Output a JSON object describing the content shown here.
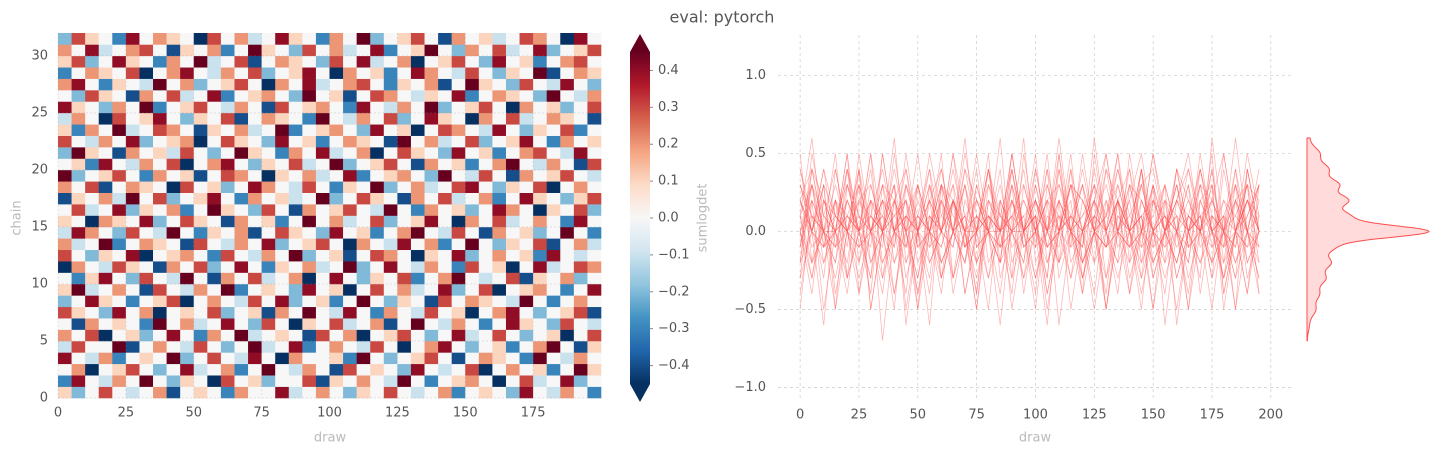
{
  "chart_data": {
    "type": "trace",
    "title": "eval: pytorch",
    "x": [
      0,
      5,
      10,
      15,
      20,
      25,
      30,
      35,
      40,
      45,
      50,
      55,
      60,
      65,
      70,
      75,
      80,
      85,
      90,
      95,
      100,
      105,
      110,
      115,
      120,
      125,
      130,
      135,
      140,
      145,
      150,
      155,
      160,
      165,
      170,
      175,
      180,
      185,
      190,
      195
    ],
    "chains": [
      0,
      1,
      2,
      3,
      4,
      5,
      6,
      7,
      8,
      9,
      10,
      11,
      12,
      13,
      14,
      15,
      16,
      17,
      18,
      19,
      20,
      21,
      22,
      23,
      24,
      25,
      26,
      27,
      28,
      29,
      30,
      31
    ],
    "values": [
      [
        0.1,
        -0.2,
        0,
        0.3,
        0,
        -0.1,
        0,
        0.2,
        -0.4,
        0,
        0.1,
        0,
        -0.3,
        0.2,
        0,
        0,
        0.4,
        -0.1,
        0,
        0.2,
        0,
        -0.2,
        0.1,
        0,
        0.3,
        0,
        -0.1,
        0,
        0.2,
        -0.3,
        0,
        0.1,
        0,
        -0.2,
        0.4,
        0,
        -0.1,
        0.2,
        0,
        -0.3
      ],
      [
        -0.3,
        0.4,
        0,
        -0.1,
        0.2,
        0,
        0.5,
        0,
        -0.2,
        0.1,
        0,
        -0.6,
        0.3,
        0,
        0.1,
        -0.2,
        0,
        0,
        0.3,
        -0.4,
        0.1,
        0,
        0.2,
        0,
        -0.1,
        0.6,
        0,
        -0.3,
        0,
        0.1,
        0.2,
        0,
        -0.5,
        0,
        0.3,
        -0.1,
        0,
        0.4,
        -0.2,
        0
      ],
      [
        0,
        0.2,
        -0.5,
        0,
        0.1,
        0.3,
        0,
        -0.2,
        0,
        0.4,
        -0.1,
        0,
        0.2,
        -0.3,
        0,
        0.5,
        0,
        -0.1,
        0.2,
        0,
        -0.4,
        0.3,
        0,
        0.1,
        0,
        -0.2,
        0.4,
        0,
        -0.1,
        0,
        0.3,
        -0.6,
        0,
        0.2,
        0,
        0.1,
        -0.3,
        0,
        0.5,
        0.1
      ],
      [
        0.4,
        0,
        -0.1,
        0.2,
        -0.3,
        0,
        0.1,
        0,
        0.6,
        -0.2,
        0,
        0.3,
        0,
        -0.1,
        0.4,
        0,
        -0.5,
        0.2,
        0,
        0,
        0.1,
        -0.3,
        0.5,
        0,
        -0.2,
        0,
        0.1,
        0.3,
        0,
        -0.4,
        0,
        0.2,
        0.1,
        0,
        -0.3,
        0.6,
        0,
        -0.1,
        0.2,
        0
      ],
      [
        -0.1,
        0.3,
        0,
        0,
        0.5,
        -0.4,
        0,
        0.2,
        0,
        -0.1,
        0.3,
        0,
        -0.2,
        0,
        0.6,
        -0.1,
        0,
        0.4,
        -0.3,
        0,
        0.2,
        0,
        -0.1,
        0.3,
        0,
        -0.5,
        0,
        0.2,
        0.4,
        0,
        -0.2,
        0,
        0.1,
        -0.3,
        0,
        0.2,
        0.5,
        0,
        -0.4,
        0.1
      ],
      [
        0.2,
        0,
        0.3,
        -0.5,
        0,
        0.1,
        -0.2,
        0,
        0.4,
        0,
        -0.3,
        0.2,
        0,
        0.5,
        -0.1,
        0,
        0.1,
        0,
        -0.4,
        0.3,
        0,
        0.2,
        -0.6,
        0,
        0.1,
        0.3,
        0,
        -0.2,
        0,
        0.4,
        -0.1,
        0,
        0.3,
        0,
        -0.2,
        0,
        0.1,
        -0.5,
        0,
        0.3
      ],
      [
        0,
        -0.4,
        0.2,
        0,
        0.1,
        0,
        -0.3,
        0.5,
        0,
        0.2,
        -0.1,
        0,
        0.4,
        0,
        -0.2,
        0.3,
        0,
        -0.6,
        0.1,
        0,
        0.3,
        -0.1,
        0,
        0.2,
        -0.4,
        0,
        0.5,
        0,
        -0.1,
        0.2,
        0,
        -0.3,
        0,
        0.4,
        0.1,
        0,
        -0.2,
        0.3,
        0,
        -0.1
      ],
      [
        0.3,
        0.1,
        0,
        -0.2,
        0.4,
        0,
        0.2,
        -0.7,
        0,
        0.1,
        0,
        0.3,
        -0.2,
        0,
        0.1,
        -0.4,
        0.2,
        0,
        0.5,
        0,
        -0.1,
        0.4,
        0,
        -0.3,
        0.2,
        0,
        -0.1,
        0.3,
        0,
        0.1,
        -0.5,
        0,
        0.2,
        0.4,
        0,
        -0.2,
        0,
        0.1,
        0.3,
        -0.4
      ],
      [
        -0.2,
        0,
        0.4,
        0.1,
        0,
        -0.3,
        0,
        0.1,
        0.3,
        -0.5,
        0,
        0.2,
        0,
        -0.1,
        0.3,
        0,
        0.4,
        -0.2,
        0,
        0.1,
        -0.3,
        0,
        0.6,
        0,
        -0.2,
        0.1,
        0,
        -0.4,
        0.3,
        0,
        0.2,
        0.1,
        0,
        -0.1,
        0.5,
        0,
        -0.3,
        0,
        0.2,
        0
      ],
      [
        0.1,
        0.6,
        -0.1,
        0,
        0.2,
        0,
        -0.4,
        0.3,
        0,
        -0.1,
        0.2,
        0,
        0.5,
        -0.3,
        0,
        0.1,
        0,
        -0.2,
        0.4,
        0,
        0.1,
        -0.5,
        0,
        0.3,
        0,
        0.2,
        -0.1,
        0,
        0.4,
        -0.2,
        0,
        0.3,
        -0.6,
        0,
        0.1,
        0.2,
        0,
        -0.3,
        0,
        0.4
      ],
      [
        0,
        -0.3,
        0.1,
        0.4,
        0,
        -0.2,
        0.3,
        0,
        -0.1,
        0.5,
        0,
        -0.4,
        0.2,
        0,
        0.3,
        -0.1,
        0,
        0.2,
        -0.5,
        0,
        0.4,
        0,
        -0.2,
        0.1,
        0,
        0.3,
        -0.3,
        0,
        0.2,
        0.5,
        0,
        -0.1,
        0,
        0.3,
        -0.4,
        0.1,
        0,
        0.2,
        -0.2,
        0
      ],
      [
        -0.5,
        0.2,
        0,
        -0.1,
        0.3,
        0.1,
        0,
        -0.4,
        0.2,
        0,
        0.3,
        -0.2,
        0,
        0.4,
        0,
        -0.3,
        0.1,
        0,
        0.2,
        -0.1,
        0,
        0.5,
        -0.2,
        0,
        0.4,
        0,
        -0.1,
        0.2,
        0,
        -0.3,
        0.3,
        0,
        0.1,
        -0.5,
        0,
        0.4,
        -0.1,
        0,
        0.3,
        0.2
      ],
      [
        0.3,
        0,
        -0.2,
        0.1,
        0,
        0.4,
        -0.5,
        0,
        0.1,
        0.2,
        0,
        -0.3,
        0.3,
        0,
        -0.1,
        0.2,
        0,
        0.6,
        -0.2,
        0,
        0.1,
        -0.4,
        0,
        0.3,
        0.2,
        0,
        -0.5,
        0.1,
        0,
        0.4,
        -0.2,
        0,
        0.2,
        0,
        0.1,
        -0.3,
        0.4,
        0,
        -0.1,
        0
      ],
      [
        0.2,
        -0.1,
        0,
        0.5,
        -0.3,
        0,
        0.2,
        0.1,
        0,
        -0.4,
        0.3,
        0,
        -0.1,
        0.2,
        0,
        0.4,
        -0.2,
        0,
        0.1,
        0.3,
        0,
        -0.6,
        0.2,
        0,
        -0.1,
        0.4,
        0,
        0.2,
        -0.3,
        0,
        0.5,
        0,
        -0.2,
        0.1,
        0,
        0.3,
        -0.4,
        0,
        0.2,
        -0.1
      ],
      [
        -0.1,
        0.4,
        0.2,
        0,
        -0.2,
        0.3,
        0,
        -0.1,
        0.5,
        0,
        -0.3,
        0.1,
        0,
        0.2,
        -0.4,
        0,
        0.3,
        0.1,
        0,
        -0.2,
        0.4,
        0,
        0.1,
        -0.3,
        0,
        0.2,
        0.5,
        0,
        -0.1,
        0.3,
        0,
        -0.4,
        0.2,
        0,
        0.1,
        -0.2,
        0,
        0.6,
        0,
        -0.3
      ],
      [
        0.1,
        0,
        -0.6,
        0.2,
        0.1,
        0,
        0.4,
        -0.2,
        0,
        0.3,
        0.1,
        0,
        -0.4,
        0.2,
        0,
        0.1,
        -0.3,
        0,
        0.5,
        0,
        0.2,
        -0.1,
        0,
        0.3,
        -0.2,
        0,
        0.1,
        0.4,
        0,
        -0.5,
        0.2,
        0,
        0.3,
        -0.1,
        0,
        0.2,
        0,
        -0.3,
        0.4,
        0
      ],
      [
        0,
        0.3,
        -0.1,
        0,
        0.4,
        -0.2,
        0.1,
        0,
        0.2,
        -0.3,
        0,
        0.5,
        0.1,
        0,
        -0.2,
        0.3,
        0,
        -0.4,
        0.2,
        0,
        0.1,
        0.3,
        0,
        -0.1,
        0.5,
        0,
        -0.3,
        0.2,
        0,
        0.1,
        -0.2,
        0,
        0.4,
        0.2,
        0,
        -0.5,
        0.1,
        0,
        0.3,
        -0.2
      ],
      [
        -0.4,
        0.1,
        0,
        0.2,
        -0.1,
        0.5,
        0,
        0.3,
        -0.2,
        0,
        0.1,
        0.4,
        0,
        -0.3,
        0.2,
        0,
        0.1,
        -0.1,
        0,
        0.6,
        -0.2,
        0,
        0.3,
        0.1,
        0,
        -0.4,
        0.2,
        0,
        0.3,
        -0.1,
        0,
        0.2,
        -0.3,
        0,
        0.4,
        0.1,
        0,
        -0.2,
        0.1,
        0.3
      ],
      [
        0.2,
        0,
        0.3,
        -0.4,
        0,
        0.2,
        0.1,
        0,
        -0.5,
        0.3,
        0,
        0.1,
        -0.2,
        0,
        0.4,
        0.2,
        0,
        -0.1,
        0.3,
        0,
        -0.3,
        0.1,
        0,
        0.5,
        -0.2,
        0,
        0.2,
        -0.1,
        0,
        0.3,
        0.4,
        0,
        -0.2,
        0.1,
        0,
        0.3,
        -0.5,
        0,
        0.2,
        0
      ],
      [
        0.5,
        -0.2,
        0,
        0.1,
        0.3,
        0,
        -0.3,
        0.2,
        0,
        0.1,
        -0.4,
        0,
        0.3,
        0.2,
        0,
        -0.5,
        0.1,
        0,
        0.2,
        -0.1,
        0,
        0.4,
        -0.3,
        0,
        0.1,
        0.2,
        0,
        -0.2,
        0.5,
        0,
        -0.1,
        0.3,
        0,
        -0.4,
        0.2,
        0,
        0.1,
        0.3,
        0,
        -0.1
      ],
      [
        0,
        0.1,
        -0.3,
        0.4,
        0,
        -0.1,
        0.2,
        0,
        0.3,
        -0.6,
        0,
        0.2,
        0.4,
        0,
        -0.2,
        0.1,
        0,
        0.3,
        -0.1,
        0,
        0.5,
        -0.2,
        0,
        0.1,
        0.3,
        0,
        -0.4,
        0.2,
        0,
        0.1,
        -0.3,
        0,
        0.2,
        0.5,
        0,
        -0.1,
        0.2,
        0,
        -0.4,
        0.3
      ],
      [
        -0.2,
        0.5,
        0.1,
        0,
        -0.4,
        0.2,
        0,
        0.1,
        -0.1,
        0.3,
        0,
        -0.2,
        0,
        0.5,
        0.1,
        0,
        -0.3,
        0.2,
        0,
        0.4,
        -0.1,
        0,
        0.2,
        -0.5,
        0,
        0.3,
        0.1,
        0,
        -0.2,
        0.4,
        0,
        0.1,
        -0.3,
        0,
        0.2,
        0.3,
        0,
        -0.1,
        0.4,
        0
      ],
      [
        0.3,
        0,
        -0.1,
        0.2,
        0,
        0.4,
        -0.2,
        0,
        0.1,
        0.2,
        -0.5,
        0,
        0.3,
        0.1,
        0,
        -0.2,
        0.4,
        0,
        0.1,
        -0.3,
        0,
        0.2,
        0.1,
        0,
        -0.4,
        0.5,
        0,
        0.2,
        -0.1,
        0,
        0.3,
        -0.2,
        0,
        0.1,
        0.4,
        0,
        -0.3,
        0.2,
        0,
        0.1
      ],
      [
        0.1,
        -0.3,
        0.2,
        0,
        0.5,
        -0.1,
        0,
        0.3,
        0.2,
        0,
        -0.4,
        0.1,
        0,
        0.2,
        -0.1,
        0,
        0.5,
        -0.3,
        0,
        0.1,
        0.2,
        0,
        -0.2,
        0.4,
        0,
        0.1,
        -0.5,
        0,
        0.3,
        0.2,
        0,
        -0.1,
        0.4,
        0,
        -0.2,
        0.1,
        0,
        0.3,
        -0.3,
        0
      ],
      [
        -0.1,
        0.2,
        0,
        -0.5,
        0.3,
        0,
        0.1,
        0.4,
        0,
        -0.2,
        0.1,
        0,
        0.3,
        -0.4,
        0,
        0.2,
        0.1,
        0,
        -0.3,
        0.5,
        0,
        -0.1,
        0.2,
        0,
        0.3,
        -0.2,
        0,
        0.4,
        0.1,
        0,
        -0.5,
        0.2,
        0,
        0.3,
        -0.1,
        0,
        0.2,
        0.1,
        0,
        -0.4
      ],
      [
        0.4,
        0.1,
        0,
        -0.2,
        0.2,
        0,
        0.5,
        -0.3,
        0,
        0.1,
        0.3,
        0,
        -0.1,
        0.2,
        0,
        -0.4,
        0.3,
        0,
        0.1,
        0.2,
        0,
        -0.3,
        0.4,
        0,
        -0.1,
        0.2,
        0,
        0.5,
        -0.2,
        0,
        0.1,
        0.3,
        0,
        -0.5,
        0.2,
        0,
        0.1,
        -0.2,
        0,
        0.3
      ],
      [
        0,
        -0.2,
        0.3,
        0.1,
        0,
        -0.4,
        0.2,
        0,
        0.3,
        -0.1,
        0,
        0.4,
        -0.3,
        0,
        0.1,
        0.2,
        0,
        -0.2,
        0.5,
        0,
        0.1,
        -0.4,
        0,
        0.3,
        0.2,
        0,
        -0.1,
        0.1,
        0,
        0.4,
        -0.3,
        0,
        0.2,
        0.1,
        0,
        -0.2,
        0.5,
        0,
        -0.1,
        0.2
      ],
      [
        0.2,
        0.4,
        0,
        -0.3,
        0.1,
        0,
        -0.1,
        0.5,
        0,
        0.2,
        -0.2,
        0,
        0.1,
        0.3,
        0,
        -0.5,
        0.2,
        0,
        0.4,
        -0.1,
        0,
        0.2,
        0.3,
        0,
        -0.3,
        0.1,
        0,
        0.2,
        -0.4,
        0,
        0.5,
        0.1,
        0,
        -0.2,
        0.3,
        0,
        -0.1,
        0.4,
        0,
        -0.2
      ],
      [
        -0.3,
        0,
        0.2,
        0.1,
        0,
        0.3,
        -0.5,
        0,
        0.2,
        0.4,
        0,
        -0.1,
        0.2,
        0,
        0.3,
        -0.2,
        0,
        0.1,
        0.4,
        0,
        -0.5,
        0.2,
        0,
        0.1,
        -0.3,
        0,
        0.4,
        0.2,
        0,
        -0.1,
        0.3,
        0,
        -0.2,
        0.1,
        0,
        0.5,
        -0.4,
        0,
        0.2,
        0.1
      ],
      [
        0.1,
        0.3,
        -0.2,
        0,
        0.4,
        0.1,
        0,
        -0.3,
        0.2,
        0,
        0.5,
        -0.1,
        0,
        0.3,
        -0.4,
        0,
        0.2,
        0.1,
        0,
        -0.2,
        0.3,
        0,
        0.4,
        -0.1,
        0,
        0.2,
        -0.5,
        0,
        0.1,
        0.3,
        0,
        -0.2,
        0.4,
        0,
        0.1,
        -0.3,
        0,
        0.2,
        0.3,
        0
      ],
      [
        0.2,
        0,
        0.4,
        -0.1,
        0,
        0.2,
        0.3,
        0,
        -0.4,
        0.1,
        0,
        0.2,
        -0.3,
        0,
        0.5,
        0.1,
        0,
        -0.2,
        0.3,
        0,
        0.2,
        -0.1,
        0,
        0.4,
        -0.3,
        0,
        0.1,
        0.5,
        0,
        -0.2,
        0.2,
        0,
        0.3,
        -0.1,
        0,
        0.4,
        -0.2,
        0,
        0.1,
        0.3
      ],
      [
        -0.2,
        0.3,
        0.1,
        0,
        -0.3,
        0.4,
        0,
        0.2,
        0.1,
        0,
        -0.5,
        0.3,
        0,
        0.2,
        -0.1,
        0,
        0.4,
        0.1,
        0,
        -0.3,
        0.2,
        0,
        0.5,
        -0.2,
        0,
        0.1,
        0.3,
        0,
        -0.4,
        0.2,
        0,
        0.1,
        -0.1,
        0,
        0.3,
        0.2,
        0,
        -0.5,
        0.4,
        0
      ]
    ],
    "heatmap": {
      "xlabel": "draw",
      "ylabel": "chain",
      "xlim": [
        0,
        200
      ],
      "ylim": [
        0,
        32
      ],
      "xticks": [
        0,
        25,
        50,
        75,
        100,
        125,
        150,
        175
      ],
      "yticks": [
        0,
        5,
        10,
        15,
        20,
        25,
        30
      ],
      "colormap": "RdBu_r",
      "clim": [
        -0.45,
        0.45
      ],
      "colorbar_label": "sumlogdet",
      "cticks": [
        {
          "value": -0.4,
          "label": "−0.4"
        },
        {
          "value": -0.3,
          "label": "−0.3"
        },
        {
          "value": -0.2,
          "label": "−0.2"
        },
        {
          "value": -0.1,
          "label": "−0.1"
        },
        {
          "value": 0,
          "label": "0.0"
        },
        0.1,
        0.2,
        0.3,
        0.4
      ],
      "grid": true
    },
    "trace": {
      "xlabel": "draw",
      "xlim": [
        -9.4,
        209
      ],
      "ylim": [
        -1.08,
        1.26
      ],
      "color": "#ff4d4d",
      "xticks": [
        0,
        25,
        50,
        75,
        100,
        125,
        150,
        175,
        200
      ],
      "yticks": [
        {
          "value": -1,
          "label": "−1.0"
        },
        {
          "value": -0.5,
          "label": "−0.5"
        },
        {
          "value": 0,
          "label": "0.0"
        },
        0.5,
        {
          "value": 1,
          "label": "1.0"
        }
      ],
      "grid": true
    }
  }
}
